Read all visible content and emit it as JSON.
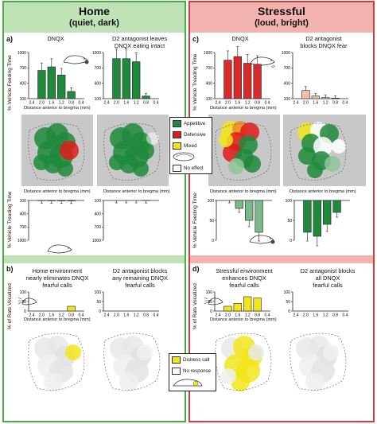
{
  "home": {
    "title": "Home",
    "subtitle": "(quiet, dark)"
  },
  "stressful": {
    "title": "Stressful",
    "subtitle": "(loud, bright)"
  },
  "panels": {
    "a": {
      "label": "a)",
      "cap1": "DNQX",
      "cap2": "D2 antagonist leaves\nDNQX eating intact",
      "ylabel_top": "% Vehicle Feeding Time",
      "ylabel_bottom": "% Vehicle Treading Time"
    },
    "b": {
      "label": "b)",
      "cap1": "Home environment\nnearly eliminates DNQX\nfearful calls",
      "cap2": "D2 antagonist blocks\nany remaining DNQX\nfearful calls",
      "ylabel": "% of Rats Vocalized"
    },
    "c": {
      "label": "c)",
      "cap1": "DNQX",
      "cap2": "D2 antagonist\nblocks DNQX fear",
      "ylabel_top": "% Vehicle Treading Time",
      "ylabel_bottom": "% Vehicle Feeding Time"
    },
    "d": {
      "label": "d)",
      "cap1": "Stressful environment\nenhances DNQX\nfearful calls",
      "cap2": "D2 antagonist blocks\nall DNQX\nfearful calls",
      "ylabel": "% of Rats Vocalized"
    }
  },
  "axis": {
    "xlabel": "Distance anterior to bregma (mm)",
    "ticks": [
      "2.4",
      "2.0",
      "1.6",
      "1.2",
      "0.8",
      "0.4"
    ]
  },
  "legend_main": {
    "items": [
      {
        "label": "Appetitive",
        "color": "#1f8a3c"
      },
      {
        "label": "Defensive",
        "color": "#e01b1b"
      },
      {
        "label": "Mixed",
        "color": "#f2e51a"
      },
      {
        "label": "No effect",
        "color": "#ffffff"
      }
    ]
  },
  "legend_calls": {
    "items": [
      {
        "label": "Distress call",
        "color": "#f2e51a"
      },
      {
        "label": "No response",
        "color": "#ffffff"
      }
    ]
  },
  "chart_data": [
    {
      "type": "bar",
      "id": "home-dnqx-feeding",
      "categories": [
        "2.0",
        "1.6",
        "1.2",
        "0.8"
      ],
      "values": [
        650,
        720,
        560,
        240
      ],
      "ylim": [
        100,
        1000
      ],
      "color": "#1f8a3c"
    },
    {
      "type": "bar",
      "id": "home-d2-feeding",
      "categories": [
        "2.0",
        "1.6",
        "1.2",
        "0.8"
      ],
      "values": [
        880,
        880,
        820,
        150
      ],
      "ylim": [
        100,
        1000
      ],
      "color": "#1f8a3c"
    },
    {
      "type": "bar",
      "id": "stress-dnqx-treading",
      "categories": [
        "2.0",
        "1.6",
        "1.2",
        "0.8"
      ],
      "values": [
        850,
        920,
        790,
        770
      ],
      "ylim": [
        100,
        1000
      ],
      "color": "#d82a2a"
    },
    {
      "type": "bar",
      "id": "stress-d2-treading",
      "categories": [
        "2.0",
        "1.6",
        "1.2",
        "0.8"
      ],
      "values": [
        260,
        150,
        120,
        110
      ],
      "ylim": [
        100,
        1000
      ],
      "color": "#f2c1a8"
    },
    {
      "type": "bar",
      "id": "home-dnqx-treading",
      "categories": [
        "2.0",
        "1.6",
        "1.2",
        "0.8"
      ],
      "values": [
        105,
        108,
        110,
        112
      ],
      "ylim": [
        100,
        1000
      ],
      "color": "#f4cbb0"
    },
    {
      "type": "bar",
      "id": "home-d2-treading",
      "categories": [
        "2.0",
        "1.6",
        "1.2",
        "0.8"
      ],
      "values": [
        100,
        100,
        100,
        103
      ],
      "ylim": [
        100,
        1000
      ],
      "color": "#ffffff"
    },
    {
      "type": "bar",
      "id": "stress-dnqx-feeding",
      "categories": [
        "2.0",
        "1.6",
        "1.2",
        "0.8"
      ],
      "values": [
        100,
        80,
        50,
        20
      ],
      "ylim": [
        0,
        100
      ],
      "color": "#7ab98a"
    },
    {
      "type": "bar",
      "id": "stress-d2-feeding",
      "categories": [
        "2.0",
        "1.6",
        "1.2",
        "0.8"
      ],
      "values": [
        20,
        10,
        40,
        70
      ],
      "ylim": [
        0,
        100
      ],
      "color": "#1f8a3c"
    },
    {
      "type": "bar",
      "id": "home-dnqx-vocal",
      "categories": [
        "2.0",
        "1.6",
        "1.2",
        "0.8"
      ],
      "values": [
        0,
        0,
        0,
        25
      ],
      "ylim": [
        0,
        100
      ],
      "color": "#f2e51a"
    },
    {
      "type": "bar",
      "id": "home-d2-vocal",
      "categories": [
        "2.0",
        "1.6",
        "1.2",
        "0.8"
      ],
      "values": [
        0,
        0,
        0,
        0
      ],
      "ylim": [
        0,
        100
      ],
      "color": "#f2e51a"
    },
    {
      "type": "bar",
      "id": "stress-dnqx-vocal",
      "categories": [
        "2.0",
        "1.6",
        "1.2",
        "0.8"
      ],
      "values": [
        25,
        40,
        75,
        68
      ],
      "ylim": [
        0,
        100
      ],
      "color": "#f2e51a"
    },
    {
      "type": "bar",
      "id": "stress-d2-vocal",
      "categories": [
        "2.0",
        "1.6",
        "1.2",
        "0.8"
      ],
      "values": [
        0,
        0,
        0,
        0
      ],
      "ylim": [
        0,
        100
      ],
      "color": "#f2e51a"
    }
  ]
}
